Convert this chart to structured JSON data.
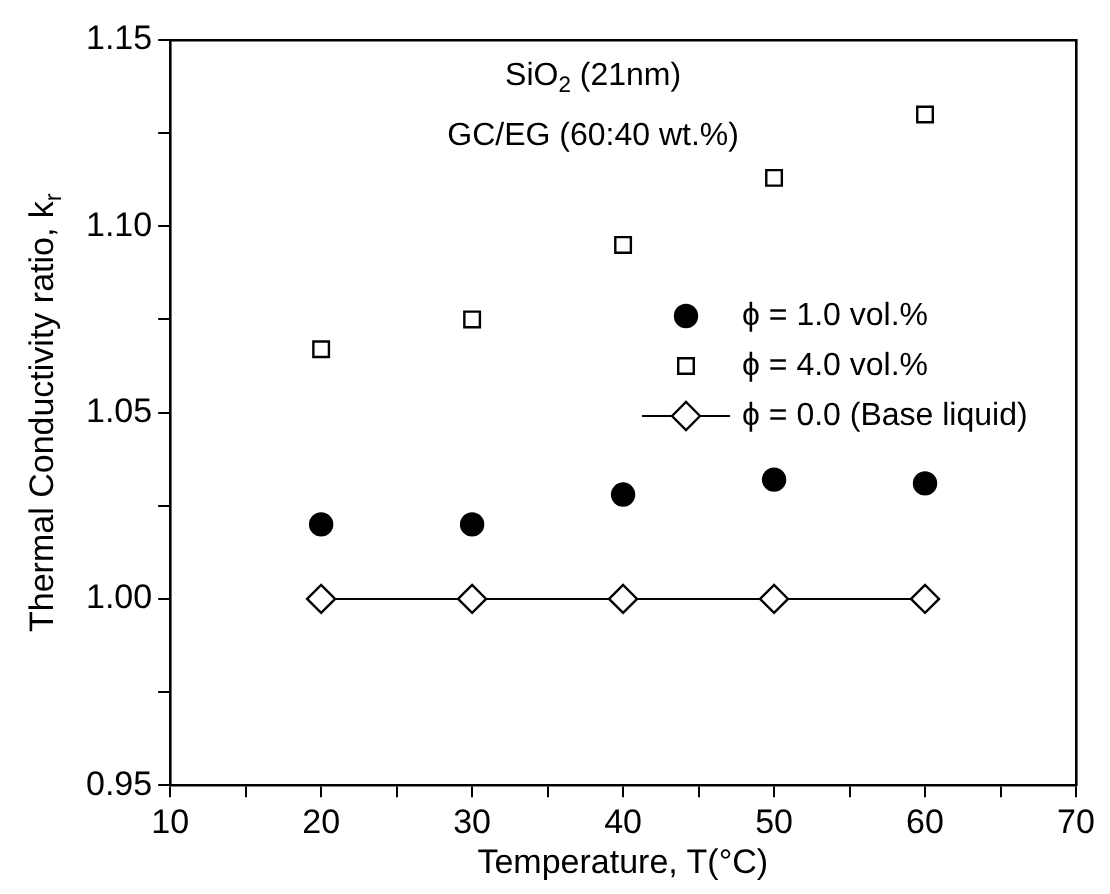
{
  "chart_data": {
    "type": "scatter",
    "xlabel": "Temperature, T(°C)",
    "ylabel": "Thermal Conductivity ratio, k$_{r}$",
    "annotations": [
      "SiO$_{2}$ (21nm)",
      "GC/EG (60:40 wt.%)"
    ],
    "x": [
      20,
      30,
      40,
      50,
      60
    ],
    "series": [
      {
        "name": "ϕ = 1.0 vol.%",
        "color": "#000000",
        "marker": "circle",
        "values": [
          1.02,
          1.02,
          1.028,
          1.032,
          1.031
        ]
      },
      {
        "name": "ϕ = 4.0 vol.%",
        "color": "#000000",
        "marker": "square",
        "values": [
          1.067,
          1.075,
          1.095,
          1.113,
          1.13
        ]
      },
      {
        "name": "ϕ = 0.0 (Base liquid)",
        "type": "line",
        "color": "#000000",
        "marker": "diamond",
        "values": [
          1.0,
          1.0,
          1.0,
          1.0,
          1.0
        ]
      }
    ],
    "xlim": [
      10,
      70
    ],
    "xticks": [
      10,
      {
        "value": 15,
        "label": null
      },
      20,
      {
        "value": 25,
        "label": null
      },
      30,
      {
        "value": 35,
        "label": null
      },
      40,
      {
        "value": 45,
        "label": null
      },
      50,
      {
        "value": 55,
        "label": null
      },
      60,
      {
        "value": 65,
        "label": null
      },
      70
    ],
    "ylim": [
      0.95,
      1.15
    ],
    "yticks": [
      0.95,
      {
        "value": 0.975,
        "label": null
      },
      {
        "value": 1.0,
        "label": "1.00"
      },
      {
        "value": 1.025,
        "label": null
      },
      1.05,
      {
        "value": 1.075,
        "label": null
      },
      {
        "value": 1.1,
        "label": "1.10"
      },
      {
        "value": 1.125,
        "label": null
      },
      1.15
    ],
    "grid": false,
    "legend": "right"
  }
}
